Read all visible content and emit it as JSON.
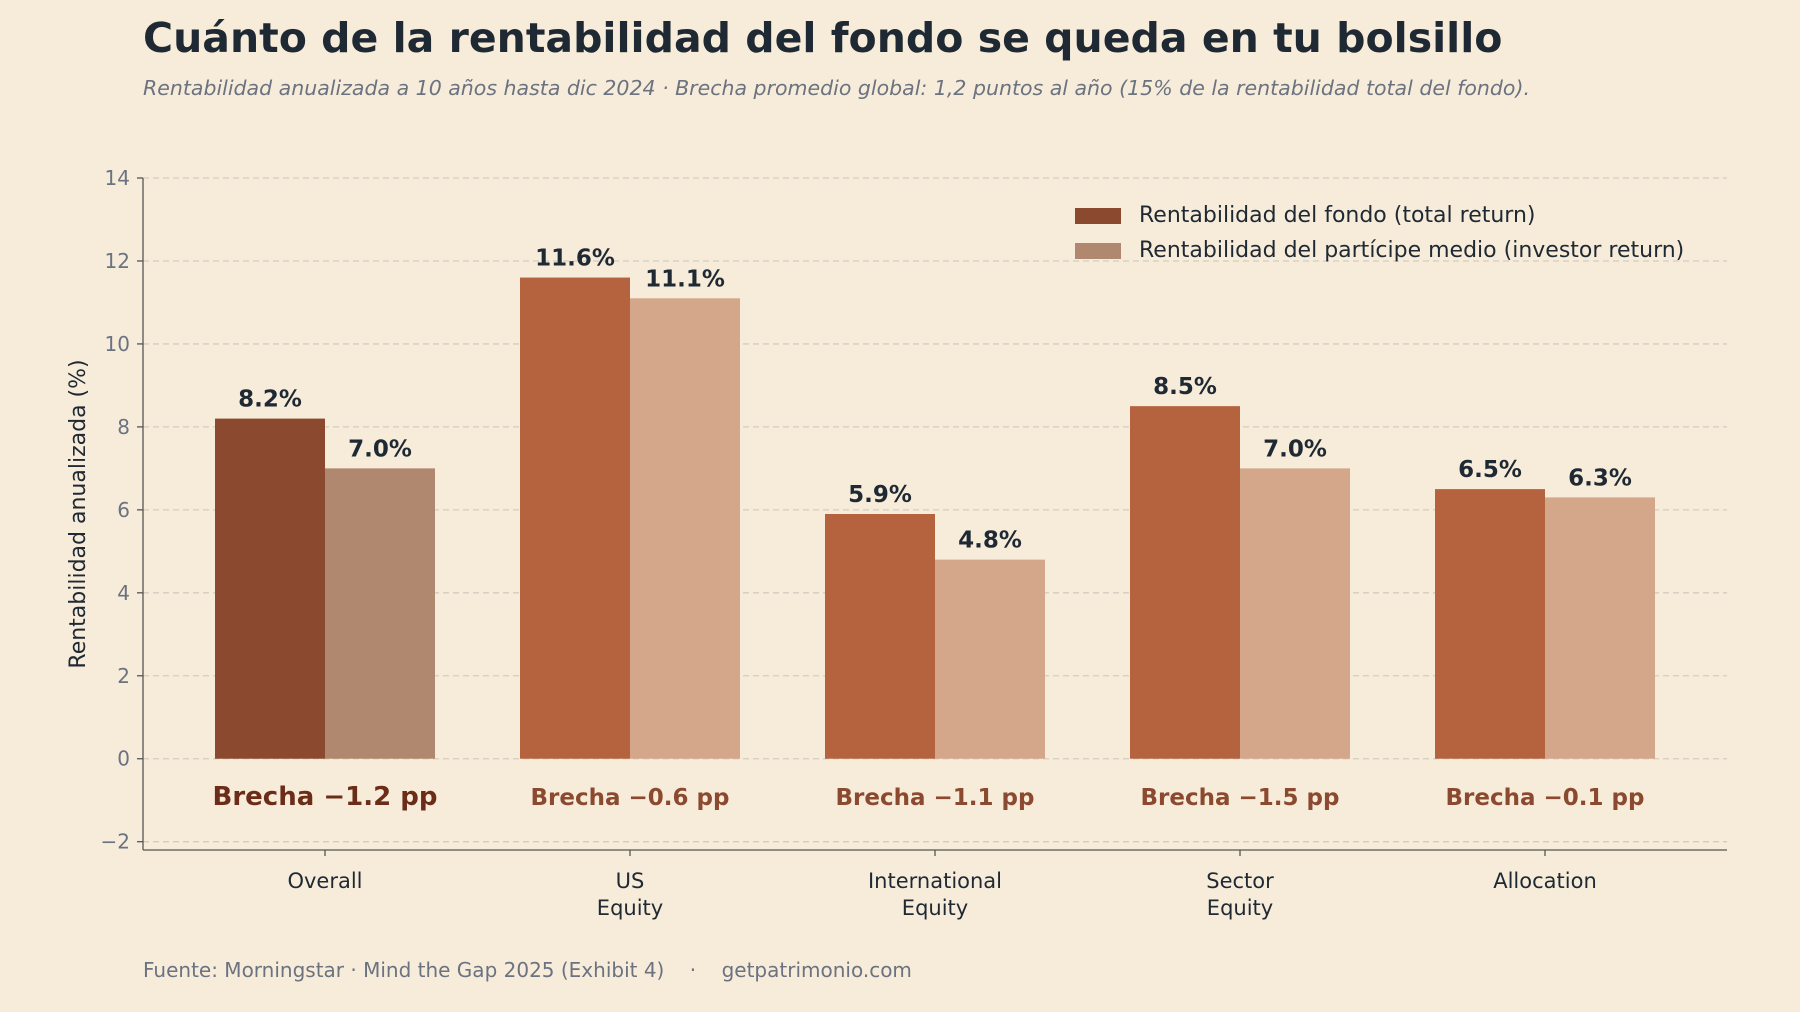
{
  "title": "Cuánto de la rentabilidad del fondo se queda en tu bolsillo",
  "subtitle": "Rentabilidad anualizada a 10 años hasta dic 2024 · Brecha promedio global: 1,2 puntos al año (15% de la rentabilidad total del fondo).",
  "footer": {
    "source": "Fuente: Morningstar · Mind the Gap 2025 (Exhibit 4)",
    "separator": "·",
    "site": "getpatrimonio.com"
  },
  "colors": {
    "background": "#f7ecda",
    "fund_overall": "#8b4a2f",
    "investor_overall": "#b0876f",
    "fund": "#b5623f",
    "investor": "#d4a78a",
    "gap_overall": "#6b2d18",
    "gap": "#8b4a2f",
    "text": "#1f2933",
    "muted": "#6b7280",
    "grid": "#d3cbbf"
  },
  "chart_data": {
    "type": "bar",
    "categories": [
      "Overall",
      "US\nEquity",
      "International\nEquity",
      "Sector\nEquity",
      "Allocation"
    ],
    "series": [
      {
        "name": "Rentabilidad del fondo (total return)",
        "values": [
          8.2,
          11.6,
          5.9,
          8.5,
          6.5
        ]
      },
      {
        "name": "Rentabilidad del partícipe medio (investor return)",
        "values": [
          7.0,
          11.1,
          4.8,
          7.0,
          6.3
        ]
      }
    ],
    "bar_labels": [
      [
        "8.2%",
        "11.6%",
        "5.9%",
        "8.5%",
        "6.5%"
      ],
      [
        "7.0%",
        "11.1%",
        "4.8%",
        "7.0%",
        "6.3%"
      ]
    ],
    "gap_labels": [
      "Brecha −1.2 pp",
      "Brecha −0.6 pp",
      "Brecha −1.1 pp",
      "Brecha −1.5 pp",
      "Brecha −0.1 pp"
    ],
    "ylabel": "Rentabilidad anualizada (%)",
    "xlabel": "",
    "ylim": [
      -2.2,
      14
    ],
    "yticks": [
      -2,
      0,
      2,
      4,
      6,
      8,
      10,
      12,
      14
    ],
    "ytick_labels": [
      "−2",
      "0",
      "2",
      "4",
      "6",
      "8",
      "10",
      "12",
      "14"
    ],
    "grid": true,
    "legend_position": "top-right"
  }
}
